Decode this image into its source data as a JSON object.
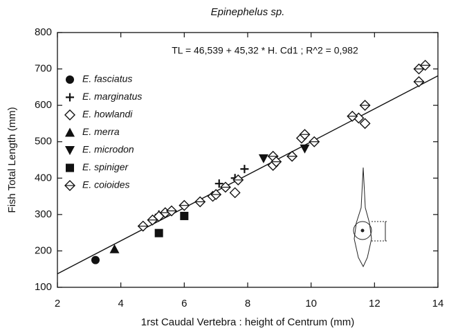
{
  "chart_data": {
    "type": "scatter",
    "title": "Epinephelus sp.",
    "annotation": "TL = 46,539 + 45,32 * H. Cd1 ; R^2 = 0,982",
    "regression": {
      "intercept": 46.539,
      "slope": 45.32
    },
    "x_label": "1rst Caudal Vertebra : height of Centrum (mm)",
    "y_label": "Fish Total Length (mm)",
    "xlim": [
      2,
      14
    ],
    "xticks": [
      2,
      4,
      6,
      8,
      10,
      12,
      14
    ],
    "ylim": [
      100,
      800
    ],
    "yticks": [
      100,
      200,
      300,
      400,
      500,
      600,
      700,
      800
    ],
    "color": "#111111",
    "series": [
      {
        "name": "E. fasciatus",
        "marker": "circle",
        "x": [
          3.2
        ],
        "values": [
          175
        ]
      },
      {
        "name": "E. marginatus",
        "marker": "plus",
        "x": [
          5.2,
          7.1,
          7.6,
          7.9
        ],
        "values": [
          300,
          385,
          400,
          425
        ]
      },
      {
        "name": "E. howlandi",
        "marker": "diamond",
        "x": [
          5.2,
          6.9,
          7.6,
          8.8,
          9.7,
          11.5,
          11.7
        ],
        "values": [
          295,
          350,
          360,
          435,
          510,
          565,
          550
        ]
      },
      {
        "name": "E. merra",
        "marker": "triangle-up",
        "x": [
          3.8
        ],
        "values": [
          205
        ]
      },
      {
        "name": "E. microdon",
        "marker": "triangle-down",
        "x": [
          8.5,
          9.8
        ],
        "values": [
          454,
          481
        ]
      },
      {
        "name": "E. spiniger",
        "marker": "square",
        "x": [
          5.2,
          6.0
        ],
        "values": [
          249,
          296
        ]
      },
      {
        "name": "E. coioides",
        "marker": "diamond-bar",
        "x": [
          4.7,
          5.0,
          5.4,
          5.6,
          6.0,
          6.5,
          7.0,
          7.3,
          7.7,
          8.8,
          8.9,
          9.4,
          9.8,
          10.1,
          11.3,
          11.7,
          13.4,
          13.4,
          13.6
        ],
        "values": [
          268,
          285,
          305,
          310,
          325,
          335,
          355,
          375,
          395,
          460,
          445,
          460,
          520,
          500,
          570,
          600,
          665,
          700,
          710
        ]
      }
    ]
  }
}
